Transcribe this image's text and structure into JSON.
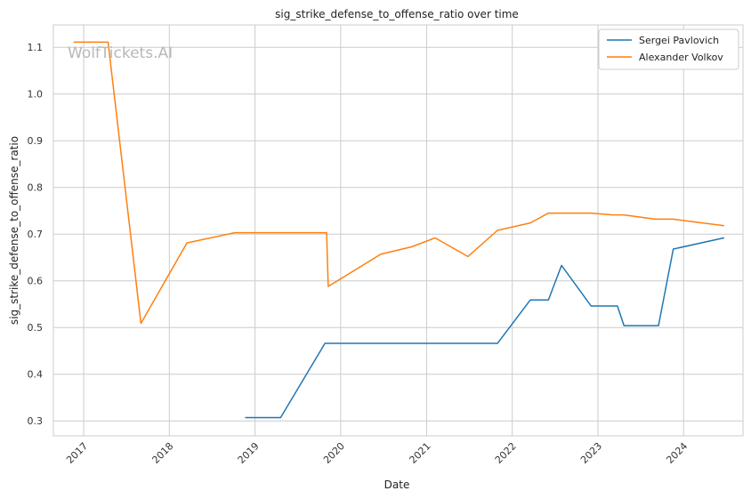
{
  "chart_data": {
    "type": "line",
    "title": "sig_strike_defense_to_offense_ratio over time",
    "xlabel": "Date",
    "ylabel": "sig_strike_defense_to_offense_ratio",
    "watermark": "WolfTickets.AI",
    "x_tick_labels": [
      "2017",
      "2018",
      "2019",
      "2020",
      "2021",
      "2022",
      "2023",
      "2024"
    ],
    "y_ticks": [
      0.3,
      0.4,
      0.5,
      0.6,
      0.7,
      0.8,
      0.9,
      1.0,
      1.1
    ],
    "xlim": [
      "2016-08-25",
      "2024-09-10"
    ],
    "ylim": [
      0.268,
      1.148
    ],
    "grid": true,
    "legend_position": "top-right",
    "series": [
      {
        "name": "Sergei Pavlovich",
        "color": "#1f77b4",
        "points": [
          {
            "x": "2018-11-20",
            "y": 0.307
          },
          {
            "x": "2019-04-20",
            "y": 0.307
          },
          {
            "x": "2019-10-26",
            "y": 0.466
          },
          {
            "x": "2021-10-30",
            "y": 0.466
          },
          {
            "x": "2022-03-19",
            "y": 0.559
          },
          {
            "x": "2022-06-04",
            "y": 0.559
          },
          {
            "x": "2022-07-30",
            "y": 0.633
          },
          {
            "x": "2022-12-03",
            "y": 0.546
          },
          {
            "x": "2023-03-25",
            "y": 0.546
          },
          {
            "x": "2023-04-22",
            "y": 0.504
          },
          {
            "x": "2023-09-16",
            "y": 0.504
          },
          {
            "x": "2023-11-18",
            "y": 0.668
          },
          {
            "x": "2024-06-22",
            "y": 0.692
          }
        ]
      },
      {
        "name": "Alexander Volkov",
        "color": "#ff7f0e",
        "points": [
          {
            "x": "2016-11-19",
            "y": 1.111
          },
          {
            "x": "2017-04-15",
            "y": 1.111
          },
          {
            "x": "2017-09-02",
            "y": 0.509
          },
          {
            "x": "2018-03-17",
            "y": 0.681
          },
          {
            "x": "2018-10-06",
            "y": 0.703
          },
          {
            "x": "2019-11-02",
            "y": 0.703
          },
          {
            "x": "2019-11-09",
            "y": 0.588
          },
          {
            "x": "2020-06-20",
            "y": 0.657
          },
          {
            "x": "2020-10-31",
            "y": 0.673
          },
          {
            "x": "2021-02-06",
            "y": 0.692
          },
          {
            "x": "2021-06-26",
            "y": 0.652
          },
          {
            "x": "2021-10-30",
            "y": 0.708
          },
          {
            "x": "2022-03-19",
            "y": 0.724
          },
          {
            "x": "2022-06-04",
            "y": 0.745
          },
          {
            "x": "2022-12-03",
            "y": 0.745
          },
          {
            "x": "2023-03-04",
            "y": 0.741
          },
          {
            "x": "2023-04-22",
            "y": 0.741
          },
          {
            "x": "2023-09-02",
            "y": 0.732
          },
          {
            "x": "2023-11-18",
            "y": 0.732
          },
          {
            "x": "2024-06-22",
            "y": 0.718
          }
        ]
      }
    ]
  }
}
